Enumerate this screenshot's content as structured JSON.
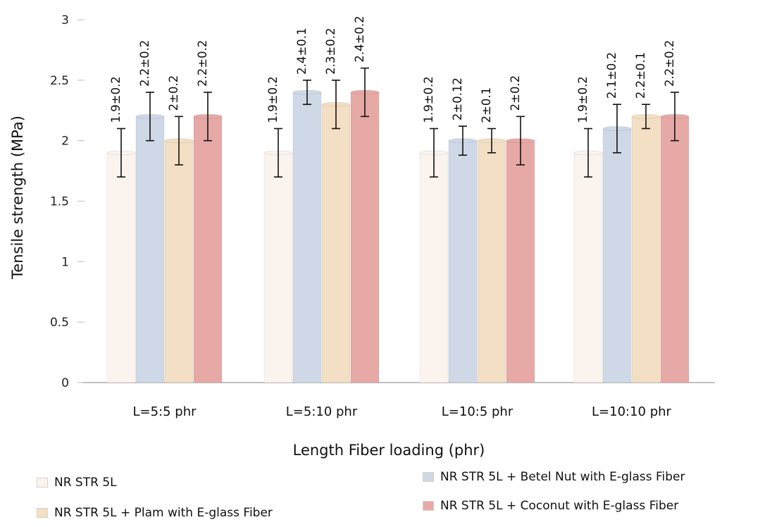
{
  "chart_data": {
    "type": "bar",
    "xlabel": "Length Fiber loading (phr)",
    "ylabel": "Tensile strength (MPa)",
    "ylim": [
      0,
      3
    ],
    "yticks": [
      "0",
      "0.5",
      "1",
      "1.5",
      "2",
      "2.5",
      "3"
    ],
    "categories": [
      "L=5:5 phr",
      "L=5:10 phr",
      "L=10:5 phr",
      "L=10:10 phr"
    ],
    "grid": false,
    "legend_position": "bottom",
    "series": [
      {
        "name": "NR STR 5L",
        "color": "#fbf3ee",
        "values": [
          1.9,
          1.9,
          1.9,
          1.9
        ],
        "errors": [
          0.2,
          0.2,
          0.2,
          0.2
        ],
        "labels": [
          "1.9±0.2",
          "1.9±0.2",
          "1.9±0.2",
          "1.9±0.2"
        ]
      },
      {
        "name": "NR STR 5L + Betel Nut with E-glass Fiber",
        "color": "#cfd8e6",
        "values": [
          2.2,
          2.4,
          2.0,
          2.1
        ],
        "errors": [
          0.2,
          0.1,
          0.12,
          0.2
        ],
        "labels": [
          "2.2±0.2",
          "2.4±0.1",
          "2±0.12",
          "2.1±0.2"
        ]
      },
      {
        "name": "NR STR 5L + Plam with E-glass Fiber",
        "color": "#f3dfc4",
        "values": [
          2.0,
          2.3,
          2.0,
          2.2
        ],
        "errors": [
          0.2,
          0.2,
          0.1,
          0.1
        ],
        "labels": [
          "2±0.2",
          "2.3±0.2",
          "2±0.1",
          "2.2±0.1"
        ]
      },
      {
        "name": "NR STR 5L + Coconut with E-glass Fiber",
        "color": "#e7a9a6",
        "values": [
          2.2,
          2.4,
          2.0,
          2.2
        ],
        "errors": [
          0.2,
          0.2,
          0.2,
          0.2
        ],
        "labels": [
          "2.2±0.2",
          "2.4±0.2",
          "2±0.2",
          "2.2±0.2"
        ]
      }
    ]
  },
  "legend": {
    "item_1": "NR STR 5L",
    "item_2": "NR STR 5L + Betel Nut with E-glass Fiber",
    "item_3": "NR STR 5L + Plam with E-glass Fiber",
    "item_4": "NR STR 5L + Coconut with E-glass Fiber"
  }
}
